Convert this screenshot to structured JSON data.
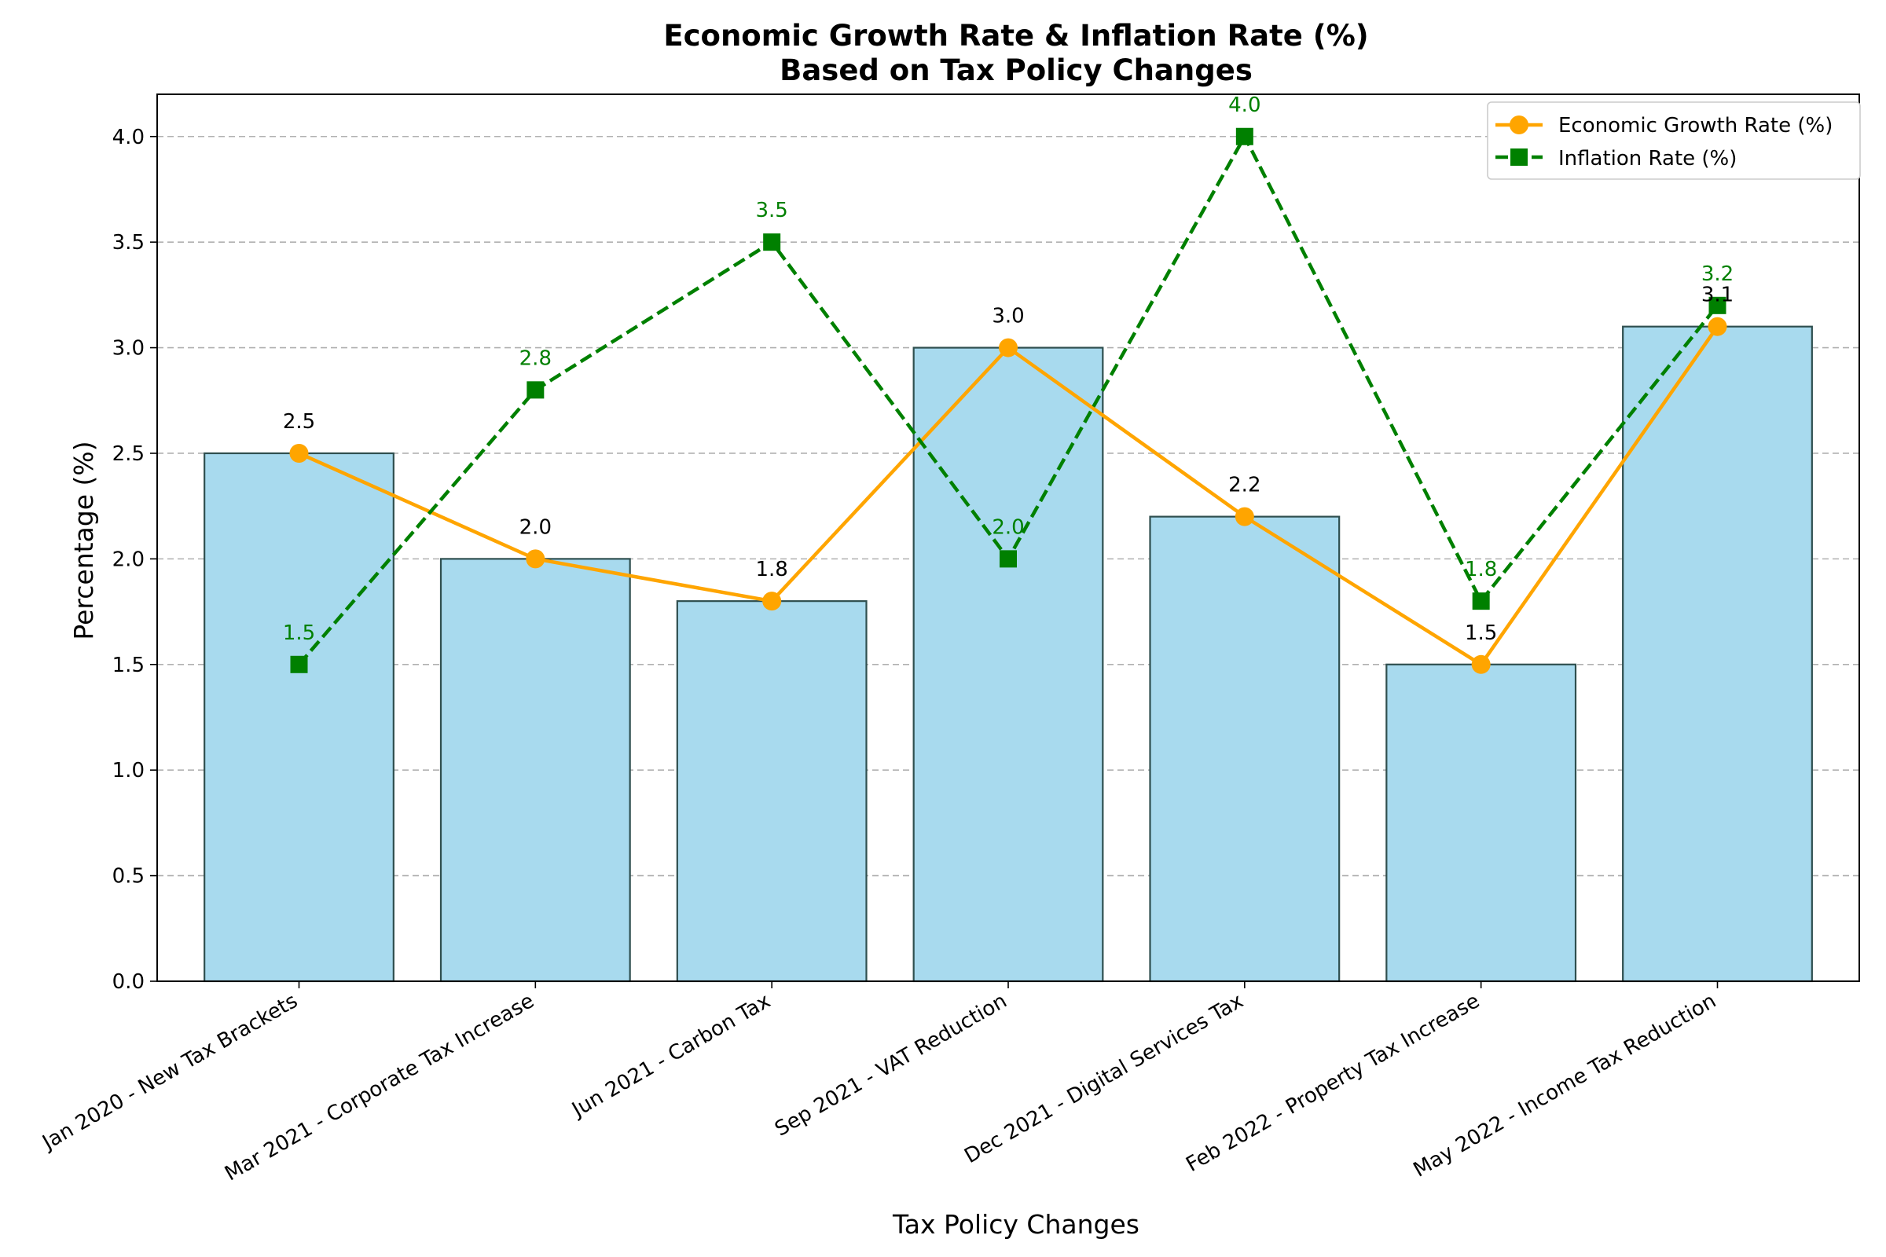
{
  "chart_data": {
    "type": "bar",
    "title_line1": "Economic Growth Rate & Inflation Rate (%)",
    "title_line2": "Based on Tax Policy Changes",
    "xlabel": "Tax Policy Changes",
    "ylabel": "Percentage (%)",
    "ylim": [
      0,
      4.2
    ],
    "yticks": [
      "0.0",
      "0.5",
      "1.0",
      "1.5",
      "2.0",
      "2.5",
      "3.0",
      "3.5",
      "4.0"
    ],
    "grid": "horizontal dashed",
    "legend_placement": "top-right",
    "categories": [
      "Jan 2020 - New Tax Brackets",
      "Mar 2021 - Corporate Tax Increase",
      "Jun 2021 - Carbon Tax",
      "Sep 2021 - VAT Reduction",
      "Dec 2021 - Digital Services Tax",
      "Feb 2022 - Property Tax Increase",
      "May 2022 - Income Tax Reduction"
    ],
    "series": [
      {
        "name": "Economic Growth Rate (%)",
        "kind": "bar+line",
        "marker": "circle",
        "color": "#ffa500",
        "bar_color": "#a8daee",
        "values": [
          2.5,
          2.0,
          1.8,
          3.0,
          2.2,
          1.5,
          3.1
        ],
        "labels": [
          "2.5",
          "2.0",
          "1.8",
          "3.0",
          "2.2",
          "1.5",
          "3.1"
        ]
      },
      {
        "name": "Inflation Rate (%)",
        "kind": "line",
        "marker": "square",
        "color": "#008000",
        "values": [
          1.5,
          2.8,
          3.5,
          2.0,
          4.0,
          1.8,
          3.2
        ],
        "labels": [
          "1.5",
          "2.8",
          "3.5",
          "2.0",
          "4.0",
          "1.8",
          "3.2"
        ]
      }
    ]
  }
}
